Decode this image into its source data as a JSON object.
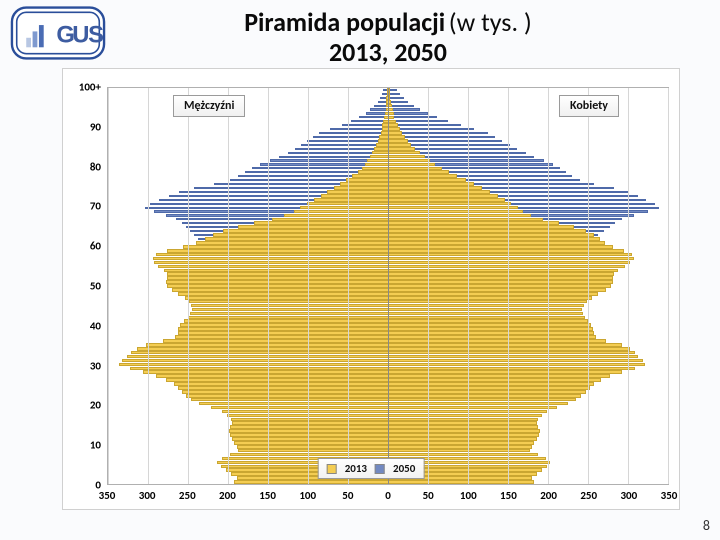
{
  "logo": {
    "text": "GUS",
    "border_outer": "#2a4e9a",
    "border_inner": "#2a4e9a",
    "fill": "#ffffff",
    "letter_fill": "#3d5ca1",
    "bars": [
      "#b8c7e3",
      "#7e99cf",
      "#4a6cb4"
    ]
  },
  "title": {
    "main": "Piramida populacji",
    "paren": "(w tys. )",
    "line2": "2013, 2050"
  },
  "chart": {
    "type": "population-pyramid",
    "side_labels": {
      "male": "Mężczyźni",
      "female": "Kobiety"
    },
    "x": {
      "max": 350,
      "tick_step": 50,
      "ticks": [
        350,
        300,
        250,
        200,
        150,
        100,
        50,
        0,
        50,
        100,
        150,
        200,
        250,
        300,
        350
      ]
    },
    "y": {
      "min": 0,
      "max": 100,
      "ticks": [
        0,
        10,
        20,
        30,
        40,
        50,
        60,
        70,
        80,
        90
      ],
      "top_label": "100+"
    },
    "grid_color": "#d6d6d6",
    "center_line_color": "#888888",
    "plot_border": "#b0b0b0",
    "background_color": "#ffffff",
    "series_order": [
      "2050",
      "2013"
    ],
    "series": {
      "2013": {
        "label": "2013",
        "fill": "#f4cd52",
        "stroke": "#caa631",
        "bar_height_ratio": 0.92,
        "male": [
          192,
          189,
          196,
          203,
          209,
          214,
          208,
          197,
          187,
          189,
          192,
          195,
          198,
          199,
          197,
          195,
          196,
          201,
          208,
          221,
          236,
          246,
          252,
          258,
          263,
          268,
          277,
          290,
          306,
          323,
          336,
          333,
          326,
          321,
          314,
          302,
          281,
          266,
          263,
          262,
          260,
          255,
          250,
          247,
          245,
          246,
          249,
          254,
          262,
          270,
          276,
          277,
          276,
          276,
          280,
          287,
          292,
          294,
          290,
          276,
          256,
          240,
          229,
          219,
          206,
          188,
          167,
          145,
          130,
          118,
          110,
          101,
          93,
          84,
          76,
          68,
          60,
          52,
          45,
          38,
          33,
          29,
          26,
          23,
          20,
          18,
          15,
          13,
          11,
          9,
          8,
          7,
          6,
          5,
          4,
          3,
          3,
          2,
          2,
          1,
          1
        ],
        "female": [
          182,
          180,
          186,
          193,
          199,
          203,
          198,
          188,
          178,
          180,
          183,
          186,
          189,
          190,
          188,
          186,
          188,
          192,
          199,
          211,
          225,
          235,
          241,
          247,
          252,
          257,
          266,
          278,
          293,
          309,
          321,
          319,
          313,
          309,
          303,
          292,
          273,
          260,
          257,
          256,
          254,
          250,
          246,
          244,
          243,
          245,
          249,
          255,
          263,
          272,
          279,
          281,
          281,
          282,
          287,
          296,
          302,
          307,
          305,
          295,
          281,
          271,
          265,
          258,
          248,
          233,
          214,
          194,
          179,
          169,
          162,
          154,
          146,
          137,
          128,
          118,
          108,
          97,
          86,
          76,
          67,
          59,
          52,
          46,
          40,
          34,
          29,
          25,
          21,
          18,
          15,
          12,
          10,
          8,
          7,
          6,
          5,
          4,
          3,
          2,
          2
        ]
      },
      "2050": {
        "label": "2050",
        "fill": "#7289c1",
        "stroke": "#4f6aa9",
        "bar_height_ratio": 0.55,
        "male": [
          135,
          135,
          136,
          137,
          138,
          139,
          140,
          141,
          142,
          143,
          144,
          145,
          146,
          148,
          149,
          150,
          151,
          152,
          153,
          154,
          155,
          156,
          157,
          158,
          159,
          160,
          161,
          163,
          165,
          168,
          172,
          178,
          185,
          192,
          197,
          200,
          199,
          195,
          189,
          183,
          178,
          176,
          175,
          174,
          173,
          173,
          173,
          174,
          176,
          179,
          183,
          186,
          187,
          187,
          186,
          185,
          186,
          190,
          197,
          206,
          218,
          229,
          237,
          243,
          248,
          253,
          258,
          265,
          278,
          293,
          304,
          298,
          286,
          274,
          261,
          243,
          218,
          198,
          187,
          179,
          170,
          160,
          148,
          136,
          125,
          116,
          109,
          101,
          94,
          86,
          72,
          58,
          46,
          36,
          28,
          22,
          17,
          13,
          10,
          8,
          6
        ],
        "female": [
          128,
          128,
          129,
          130,
          131,
          132,
          133,
          134,
          135,
          136,
          137,
          138,
          140,
          141,
          142,
          143,
          144,
          145,
          146,
          147,
          148,
          149,
          150,
          151,
          152,
          154,
          155,
          157,
          159,
          162,
          166,
          172,
          179,
          186,
          191,
          194,
          194,
          190,
          185,
          180,
          176,
          174,
          173,
          172,
          172,
          172,
          173,
          174,
          177,
          180,
          184,
          188,
          190,
          191,
          191,
          191,
          193,
          198,
          207,
          218,
          232,
          245,
          255,
          263,
          270,
          277,
          284,
          293,
          308,
          325,
          339,
          334,
          323,
          312,
          300,
          282,
          258,
          240,
          230,
          223,
          215,
          206,
          195,
          183,
          172,
          161,
          152,
          143,
          134,
          125,
          108,
          91,
          75,
          61,
          50,
          40,
          32,
          25,
          20,
          15,
          11
        ]
      }
    },
    "legend_years": [
      "2013",
      "2050"
    ]
  },
  "page_number": "8",
  "fonts": {
    "title_size_pt": 26,
    "axis_size_pt": 11,
    "legend_size_pt": 12
  }
}
